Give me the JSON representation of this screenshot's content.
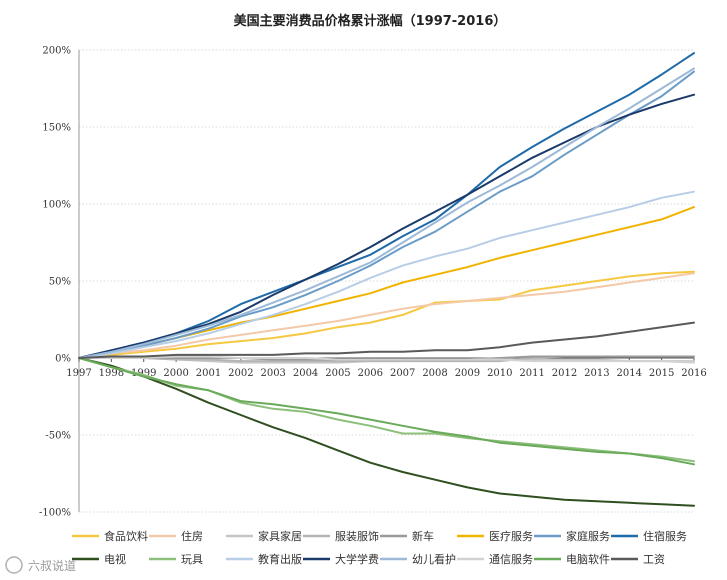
{
  "watermark": "六叔说道",
  "chart_data": {
    "type": "line",
    "title": "美国主要消费品价格累计涨幅（1997-2016）",
    "xlabel": "",
    "ylabel": "",
    "x": [
      "1997",
      "1998",
      "1999",
      "2000",
      "2001",
      "2002",
      "2003",
      "2004",
      "2005",
      "2006",
      "2007",
      "2008",
      "2009",
      "2010",
      "2011",
      "2012",
      "2013",
      "2014",
      "2015",
      "2016"
    ],
    "ylim": [
      -100,
      200
    ],
    "yticks": [
      200,
      150,
      100,
      50,
      0,
      -50,
      -100
    ],
    "ytick_labels": [
      "200%",
      "150%",
      "100%",
      "50%",
      "0%",
      "-50%",
      "-100%"
    ],
    "grid": true,
    "legend_position": "bottom",
    "series": [
      {
        "name": "食品饮料",
        "color": "#f5c842",
        "values": [
          0,
          2,
          4,
          6,
          9,
          11,
          13,
          16,
          20,
          23,
          28,
          36,
          37,
          38,
          44,
          47,
          50,
          53,
          55,
          56
        ]
      },
      {
        "name": "住房",
        "color": "#f3c9a8",
        "values": [
          0,
          3,
          5,
          8,
          12,
          15,
          18,
          21,
          24,
          28,
          32,
          35,
          37,
          39,
          41,
          43,
          46,
          49,
          52,
          55
        ]
      },
      {
        "name": "家具家居",
        "color": "#c6c6c6",
        "values": [
          0,
          1,
          0,
          -1,
          -2,
          -3,
          -3,
          -3,
          -3,
          -2,
          -2,
          -1,
          -1,
          -1,
          -1,
          -1,
          -1,
          -2,
          -2,
          -2
        ]
      },
      {
        "name": "服装服饰",
        "color": "#b4b4b4",
        "values": [
          0,
          1,
          0,
          -1,
          -1,
          -2,
          -2,
          -2,
          -2,
          -2,
          -2,
          -2,
          -2,
          -2,
          0,
          1,
          1,
          1,
          1,
          1
        ]
      },
      {
        "name": "新车",
        "color": "#9a9a9a",
        "values": [
          0,
          0,
          0,
          0,
          0,
          0,
          -1,
          -1,
          -1,
          -1,
          -1,
          -1,
          -1,
          0,
          1,
          1,
          1,
          1,
          1,
          1
        ]
      },
      {
        "name": "医疗服务",
        "color": "#f0b400",
        "values": [
          0,
          4,
          8,
          13,
          18,
          23,
          27,
          32,
          37,
          42,
          49,
          54,
          59,
          65,
          70,
          75,
          80,
          85,
          90,
          98
        ]
      },
      {
        "name": "家庭服务",
        "color": "#6a9cc7",
        "values": [
          0,
          4,
          8,
          13,
          19,
          27,
          33,
          41,
          50,
          60,
          72,
          82,
          95,
          108,
          118,
          132,
          145,
          158,
          170,
          186
        ]
      },
      {
        "name": "住宿服务",
        "color": "#1f6aa8",
        "values": [
          0,
          5,
          10,
          16,
          24,
          35,
          43,
          51,
          59,
          67,
          79,
          90,
          106,
          124,
          137,
          149,
          160,
          171,
          184,
          198
        ]
      },
      {
        "name": "电视",
        "color": "#2f4f1f",
        "values": [
          0,
          -5,
          -12,
          -20,
          -29,
          -37,
          -45,
          -52,
          -60,
          -68,
          -74,
          -79,
          -84,
          -88,
          -90,
          -92,
          -93,
          -94,
          -95,
          -96
        ]
      },
      {
        "name": "玩具",
        "color": "#8cc07a",
        "values": [
          0,
          -6,
          -11,
          -18,
          -21,
          -29,
          -33,
          -35,
          -40,
          -44,
          -49,
          -49,
          -52,
          -54,
          -56,
          -58,
          -60,
          -62,
          -64,
          -67
        ]
      },
      {
        "name": "教育出版",
        "color": "#b8cde6",
        "values": [
          0,
          3,
          7,
          11,
          16,
          22,
          28,
          35,
          43,
          52,
          60,
          66,
          71,
          78,
          83,
          88,
          93,
          98,
          104,
          108
        ]
      },
      {
        "name": "大学学费",
        "color": "#1a3a6a",
        "values": [
          0,
          5,
          10,
          16,
          22,
          30,
          41,
          51,
          61,
          72,
          84,
          95,
          106,
          118,
          130,
          140,
          150,
          158,
          165,
          171
        ]
      },
      {
        "name": "幼儿看护",
        "color": "#9cbad8",
        "values": [
          0,
          4,
          9,
          15,
          21,
          28,
          36,
          44,
          53,
          62,
          75,
          88,
          101,
          112,
          124,
          137,
          150,
          162,
          175,
          188
        ]
      },
      {
        "name": "通信服务",
        "color": "#d2d2d2",
        "values": [
          0,
          0,
          0,
          1,
          1,
          0,
          0,
          0,
          -1,
          -1,
          -1,
          -1,
          -1,
          -1,
          -2,
          -2,
          -2,
          -2,
          -2,
          -3
        ]
      },
      {
        "name": "电脑软件",
        "color": "#6aaa5a",
        "values": [
          0,
          -6,
          -12,
          -17,
          -21,
          -28,
          -30,
          -33,
          -36,
          -40,
          -44,
          -48,
          -51,
          -55,
          -57,
          -59,
          -61,
          -62,
          -65,
          -69
        ]
      },
      {
        "name": "工资",
        "color": "#5a5a5a",
        "values": [
          0,
          1,
          1,
          2,
          2,
          2,
          2,
          3,
          3,
          4,
          4,
          5,
          5,
          7,
          10,
          12,
          14,
          17,
          20,
          23
        ]
      }
    ]
  }
}
